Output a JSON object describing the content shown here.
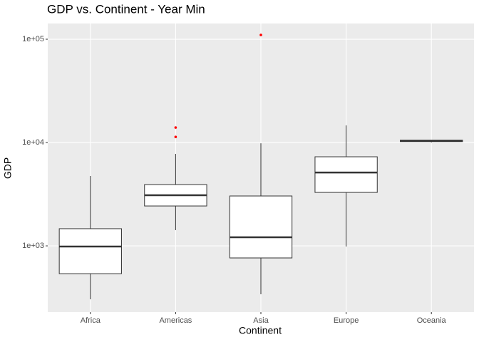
{
  "chart_data": {
    "type": "box",
    "title": "GDP vs. Continent - Year Min",
    "x_label": "Continent",
    "y_label": "GDP",
    "categories": [
      "Africa",
      "Americas",
      "Asia",
      "Europe",
      "Oceania"
    ],
    "boxes": [
      {
        "min": 304,
        "q1": 538,
        "median": 985,
        "q3": 1466,
        "max": 4745,
        "outliers": []
      },
      {
        "min": 1420,
        "q1": 2433,
        "median": 3088,
        "q3": 3917,
        "max": 7760,
        "outliers": [
          13960,
          11340
        ]
      },
      {
        "min": 340,
        "q1": 764,
        "median": 1211,
        "q3": 3040,
        "max": 9840,
        "outliers": [
          109900
        ]
      },
      {
        "min": 985,
        "q1": 3290,
        "median": 5130,
        "q3": 7280,
        "max": 14650,
        "outliers": []
      },
      {
        "min": 10040,
        "q1": 10210,
        "median": 10380,
        "q3": 10550,
        "max": 10560,
        "outliers": []
      }
    ],
    "box_color": "#333333",
    "box_fill": "#ffffff",
    "outlier_color": "#ff0000",
    "ylog": true,
    "ylim": [
      228.6,
      141900
    ],
    "yticks": [
      {
        "value": 1000,
        "label": "1e+03"
      },
      {
        "value": 10000,
        "label": "1e+04"
      },
      {
        "value": 100000,
        "label": "1e+05"
      }
    ],
    "grid": true
  }
}
